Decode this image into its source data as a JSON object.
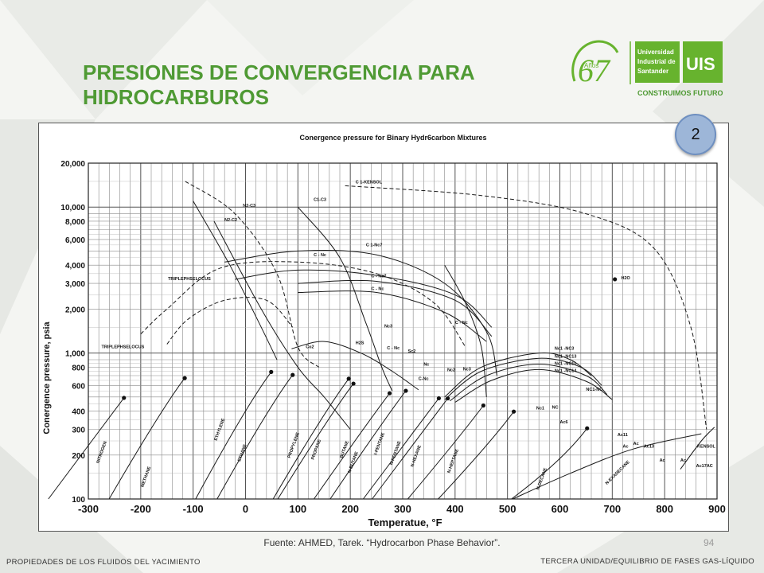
{
  "slide": {
    "title_line1": "PRESIONES DE CONVERGENCIA PARA",
    "title_line2": "HIDROCARBUROS",
    "badge_number": "2",
    "source": "Fuente: AHMED, Tarek. “Hydrocarbon Phase Behavior”.",
    "page_number": "94",
    "footer_left": "PROPIEDADES DE LOS FLUIDOS DEL YACIMIENTO",
    "footer_right": "TERCERA UNIDAD/EQUILIBRIO DE FASES GAS-LÍQUIDO",
    "title_color": "#4f9a34"
  },
  "logo": {
    "anniversary_number": "67",
    "anniversary_word": "Años",
    "university_line1": "Universidad",
    "university_line2": "Industrial de",
    "university_line3": "Santander",
    "monogram": "UIS",
    "tagline": "CONSTRUIMOS FUTURO",
    "brand_color": "#67b32e"
  },
  "chart_data": {
    "type": "line",
    "title": "Conergence pressure for Binary Hydr6carbon Mixtures",
    "xlabel": "Temperatue, °F",
    "ylabel": "Conergence pressure, psia",
    "xlim": [
      -300,
      900
    ],
    "ylim": [
      100,
      20000
    ],
    "y_scale": "log",
    "grid": true,
    "x_ticks": [
      -300,
      -200,
      -100,
      0,
      100,
      200,
      300,
      400,
      500,
      600,
      700,
      800,
      900
    ],
    "y_ticks": [
      {
        "value": 20000,
        "label": "20,000"
      },
      {
        "value": 10000,
        "label": "10,000"
      },
      {
        "value": 8000,
        "label": "8,000"
      },
      {
        "value": 6000,
        "label": "6,000"
      },
      {
        "value": 4000,
        "label": "4,000"
      },
      {
        "value": 3000,
        "label": "3,000"
      },
      {
        "value": 2000,
        "label": "2,000"
      },
      {
        "value": 1000,
        "label": "1,000"
      },
      {
        "value": 800,
        "label": "800"
      },
      {
        "value": 600,
        "label": "600"
      },
      {
        "value": 400,
        "label": "400"
      },
      {
        "value": 300,
        "label": "300"
      },
      {
        "value": 200,
        "label": "200"
      },
      {
        "value": 100,
        "label": "100"
      }
    ],
    "critical_points": [
      {
        "name": "NITROGEN",
        "x": -232,
        "y": 493
      },
      {
        "name": "METHANE",
        "x": -116,
        "y": 673
      },
      {
        "name": "ETHYLENE",
        "x": 49,
        "y": 742
      },
      {
        "name": "ETHANE",
        "x": 90,
        "y": 708
      },
      {
        "name": "PROPYLENE",
        "x": 197,
        "y": 667
      },
      {
        "name": "PROPANE",
        "x": 206,
        "y": 617
      },
      {
        "name": "BUTANE",
        "x": 275,
        "y": 530
      },
      {
        "name": "N-BUTANE",
        "x": 306,
        "y": 551
      },
      {
        "name": "I-PENTANE",
        "x": 369,
        "y": 490
      },
      {
        "name": "N-PENTANE",
        "x": 386,
        "y": 489
      },
      {
        "name": "N-HEXANE",
        "x": 454,
        "y": 437
      },
      {
        "name": "N-HEPTANE",
        "x": 512,
        "y": 397
      },
      {
        "name": "N-DECANE",
        "x": 652,
        "y": 305
      },
      {
        "name": "H2O",
        "x": 705,
        "y": 3200
      }
    ],
    "series": [
      {
        "name": "C 1-KENSOL",
        "points": [
          [
            190,
            14000
          ],
          [
            450,
            12000
          ],
          [
            650,
            9000
          ],
          [
            780,
            5200
          ],
          [
            850,
            1500
          ],
          [
            880,
            300
          ]
        ],
        "dashed": true
      },
      {
        "name": "",
        "points": [
          [
            -115,
            15000
          ],
          [
            -20,
            9000
          ],
          [
            60,
            3500
          ],
          [
            100,
            1100
          ],
          [
            140,
            800
          ]
        ],
        "dashed": true
      },
      {
        "name": "TRIPLEPHSELOCUS",
        "points": [
          [
            -200,
            1350
          ],
          [
            -150,
            2000
          ],
          [
            -50,
            3800
          ],
          [
            100,
            4200
          ],
          [
            250,
            3500
          ],
          [
            360,
            2200
          ],
          [
            420,
            1100
          ]
        ],
        "dashed": true
      },
      {
        "name": "TRIPLEPHSELOCUS",
        "points": [
          [
            -150,
            1150
          ],
          [
            -110,
            1700
          ],
          [
            -40,
            2300
          ],
          [
            40,
            2300
          ],
          [
            90,
            1500
          ]
        ],
        "dashed": true
      },
      {
        "name": "N2-C3",
        "points": [
          [
            -60,
            8000
          ],
          [
            30,
            2000
          ],
          [
            100,
            800
          ],
          [
            150,
            500
          ],
          [
            200,
            300
          ]
        ],
        "dashed": false
      },
      {
        "name": "N2-C2",
        "points": [
          [
            -100,
            11000
          ],
          [
            -30,
            4000
          ],
          [
            30,
            1500
          ],
          [
            60,
            900
          ]
        ],
        "dashed": false
      },
      {
        "name": "C1-C3",
        "points": [
          [
            100,
            10000
          ],
          [
            180,
            4500
          ],
          [
            230,
            1600
          ],
          [
            260,
            800
          ],
          [
            280,
            550
          ]
        ],
        "dashed": false
      },
      {
        "name": "C 1-Nc7",
        "points": [
          [
            -40,
            4200
          ],
          [
            100,
            5000
          ],
          [
            250,
            4700
          ],
          [
            380,
            3000
          ],
          [
            460,
            1400
          ],
          [
            480,
            700
          ]
        ],
        "dashed": false
      },
      {
        "name": "C - Nc",
        "points": [
          [
            -20,
            3200
          ],
          [
            100,
            3700
          ],
          [
            250,
            3400
          ],
          [
            400,
            2500
          ],
          [
            470,
            1500
          ]
        ],
        "dashed": false
      },
      {
        "name": "C - Nc7",
        "points": [
          [
            100,
            3000
          ],
          [
            250,
            3100
          ],
          [
            400,
            2300
          ],
          [
            470,
            1300
          ]
        ],
        "dashed": false
      },
      {
        "name": "C - Nc",
        "points": [
          [
            100,
            2600
          ],
          [
            250,
            2600
          ],
          [
            380,
            1900
          ],
          [
            460,
            1200
          ]
        ],
        "dashed": false
      },
      {
        "name": "C - Nc",
        "points": [
          [
            380,
            4000
          ],
          [
            420,
            2200
          ],
          [
            450,
            1100
          ],
          [
            460,
            500
          ]
        ],
        "dashed": false
      },
      {
        "name": "Co2",
        "points": [
          [
            88,
            1070
          ],
          [
            150,
            1200
          ],
          [
            220,
            1000
          ],
          [
            280,
            750
          ],
          [
            330,
            560
          ]
        ],
        "dashed": false
      },
      {
        "name": "Nc1 -NC3",
        "points": [
          [
            380,
            500
          ],
          [
            450,
            800
          ],
          [
            560,
            1000
          ],
          [
            620,
            900
          ],
          [
            660,
            700
          ]
        ],
        "dashed": false
      },
      {
        "name": "Nc1 -NC13",
        "points": [
          [
            380,
            480
          ],
          [
            450,
            750
          ],
          [
            560,
            920
          ],
          [
            640,
            800
          ],
          [
            680,
            600
          ]
        ],
        "dashed": false
      },
      {
        "name": "Nc1 -NC11",
        "points": [
          [
            390,
            470
          ],
          [
            460,
            700
          ],
          [
            560,
            840
          ],
          [
            650,
            700
          ],
          [
            690,
            520
          ]
        ],
        "dashed": false
      },
      {
        "name": "Nc1 -NC14",
        "points": [
          [
            400,
            460
          ],
          [
            470,
            650
          ],
          [
            560,
            770
          ],
          [
            650,
            640
          ],
          [
            700,
            480
          ]
        ],
        "dashed": false
      },
      {
        "name": "N-EXADECANE",
        "points": [
          [
            510,
            100
          ],
          [
            620,
            150
          ],
          [
            740,
            220
          ],
          [
            870,
            280
          ]
        ],
        "dashed": false
      },
      {
        "name": "KENSOL",
        "points": [
          [
            830,
            160
          ],
          [
            870,
            250
          ],
          [
            895,
            310
          ]
        ],
        "dashed": false
      }
    ],
    "annotations": [
      {
        "text": "C 1-KENSOL",
        "x": 210,
        "y": 14500
      },
      {
        "text": "N2-C3",
        "x": -5,
        "y": 10000
      },
      {
        "text": "N2-C2",
        "x": -40,
        "y": 8000
      },
      {
        "text": "C1-C3",
        "x": 130,
        "y": 11000
      },
      {
        "text": "TRIPLEPHSELOCUS",
        "x": -148,
        "y": 3150
      },
      {
        "text": "TRIPLEPHSELOCUS",
        "x": -275,
        "y": 1080
      },
      {
        "text": "C 1-Nc7",
        "x": 230,
        "y": 5400
      },
      {
        "text": "C - Nc",
        "x": 130,
        "y": 4600
      },
      {
        "text": "C - Nc7",
        "x": 240,
        "y": 3300
      },
      {
        "text": "C - Nc",
        "x": 240,
        "y": 2700
      },
      {
        "text": "C - Nc",
        "x": 400,
        "y": 1580
      },
      {
        "text": "Nc3",
        "x": 265,
        "y": 1500
      },
      {
        "text": "H2S",
        "x": 210,
        "y": 1150
      },
      {
        "text": "C - Nc",
        "x": 270,
        "y": 1060
      },
      {
        "text": "Co2",
        "x": 115,
        "y": 1080
      },
      {
        "text": "Sc2",
        "x": 310,
        "y": 1010
      },
      {
        "text": "Nc",
        "x": 340,
        "y": 820
      },
      {
        "text": "Nc2",
        "x": 385,
        "y": 750
      },
      {
        "text": "Nc3",
        "x": 415,
        "y": 760
      },
      {
        "text": "C-Nc",
        "x": 330,
        "y": 655
      },
      {
        "text": "Nc1 -NC3",
        "x": 590,
        "y": 1050
      },
      {
        "text": "Nc1 -NC13",
        "x": 590,
        "y": 930
      },
      {
        "text": "Nc1 -NC11",
        "x": 590,
        "y": 830
      },
      {
        "text": "Nc1 -NC14",
        "x": 590,
        "y": 740
      },
      {
        "text": "NC1-NC",
        "x": 650,
        "y": 550
      },
      {
        "text": "H2O",
        "x": 717,
        "y": 3200
      },
      {
        "text": "Nc1",
        "x": 555,
        "y": 410
      },
      {
        "text": "NC",
        "x": 585,
        "y": 415
      },
      {
        "text": "Ac6",
        "x": 600,
        "y": 330
      },
      {
        "text": "Ac11",
        "x": 710,
        "y": 270
      },
      {
        "text": "Ac",
        "x": 720,
        "y": 225
      },
      {
        "text": "Ac",
        "x": 740,
        "y": 235
      },
      {
        "text": "Ac13",
        "x": 760,
        "y": 225
      },
      {
        "text": "Ac",
        "x": 790,
        "y": 180
      },
      {
        "text": "Ac",
        "x": 830,
        "y": 180
      },
      {
        "text": "KENSOL",
        "x": 862,
        "y": 225
      },
      {
        "text": "Ac17",
        "x": 860,
        "y": 165
      },
      {
        "text": "AC",
        "x": 880,
        "y": 165
      },
      {
        "text": "NITROGEN",
        "x": -280,
        "y": 175,
        "rotate": -70
      },
      {
        "text": "METHANE",
        "x": -195,
        "y": 120,
        "rotate": -70
      },
      {
        "text": "ETHYLENE",
        "x": -55,
        "y": 250,
        "rotate": -70
      },
      {
        "text": "ETHANE",
        "x": -10,
        "y": 180,
        "rotate": -70
      },
      {
        "text": "PROPYLENE",
        "x": 85,
        "y": 190,
        "rotate": -70
      },
      {
        "text": "PROPANE",
        "x": 130,
        "y": 185,
        "rotate": -70
      },
      {
        "text": "BUTANE",
        "x": 185,
        "y": 190,
        "rotate": -70
      },
      {
        "text": "N-BUTANE",
        "x": 200,
        "y": 150,
        "rotate": -70
      },
      {
        "text": "I-PENTANE",
        "x": 250,
        "y": 200,
        "rotate": -70
      },
      {
        "text": "N-PENTANE",
        "x": 280,
        "y": 170,
        "rotate": -70
      },
      {
        "text": "N-HEXANE",
        "x": 320,
        "y": 165,
        "rotate": -70
      },
      {
        "text": "N-HEPTANE",
        "x": 390,
        "y": 150,
        "rotate": -70
      },
      {
        "text": "N-DECANE",
        "x": 560,
        "y": 115,
        "rotate": -70
      },
      {
        "text": "N-EXADECANE",
        "x": 690,
        "y": 125,
        "rotate": -45
      }
    ]
  }
}
